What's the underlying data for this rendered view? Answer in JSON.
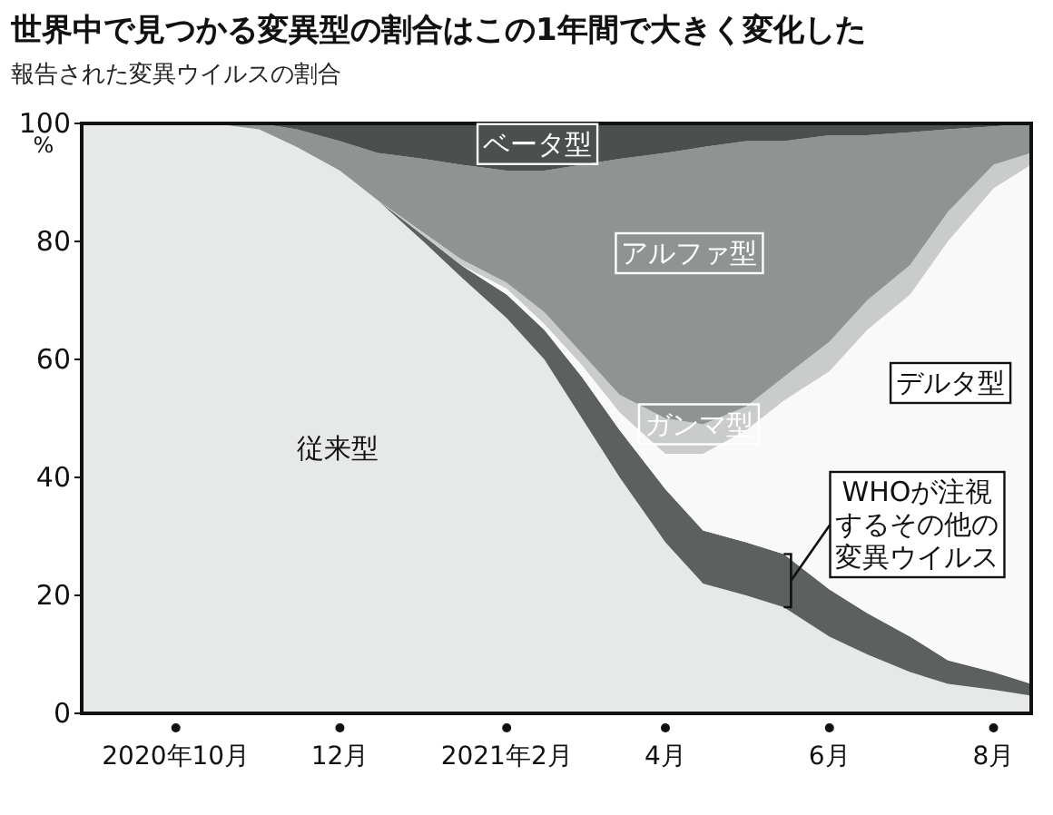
{
  "chart_data": {
    "type": "area",
    "stacked": true,
    "title": "世界中で見つかる変異型の割合はこの1年間で大きく変化した",
    "subtitle": "報告された変異ウイルスの割合",
    "ylabel": "%",
    "x": [
      "2020-08-27",
      "2020-09-15",
      "2020-10-01",
      "2020-10-15",
      "2020-11-01",
      "2020-11-15",
      "2020-12-01",
      "2020-12-15",
      "2021-01-01",
      "2021-01-15",
      "2021-02-01",
      "2021-02-15",
      "2021-03-01",
      "2021-03-15",
      "2021-04-01",
      "2021-04-15",
      "2021-05-01",
      "2021-05-15",
      "2021-06-01",
      "2021-06-15",
      "2021-07-01",
      "2021-07-15",
      "2021-08-01",
      "2021-08-15"
    ],
    "series": [
      {
        "name": "従来型",
        "color": "#e6e9e8",
        "values": [
          100,
          100,
          100,
          100,
          99,
          96,
          92,
          87,
          80,
          74,
          67,
          60,
          50,
          40,
          29,
          22,
          20,
          18,
          13,
          10,
          7,
          5,
          4,
          3
        ]
      },
      {
        "name": "WHOが注視するその他の変異ウイルス",
        "color": "#5c6160",
        "values": [
          0,
          0,
          0,
          0,
          0,
          0,
          0,
          0,
          1,
          2,
          4,
          5,
          7,
          8,
          9,
          9,
          9,
          9,
          8,
          7,
          6,
          4,
          3,
          2
        ]
      },
      {
        "name": "デルタ型",
        "color": "#f8f9f8",
        "values": [
          0,
          0,
          0,
          0,
          0,
          0,
          0,
          0,
          0,
          0,
          1,
          1,
          2,
          3,
          6,
          13,
          19,
          26,
          37,
          48,
          58,
          71,
          82,
          88
        ]
      },
      {
        "name": "ガンマ型",
        "color": "#c9cccb",
        "values": [
          0,
          0,
          0,
          0,
          0,
          0,
          0,
          0,
          0.5,
          1,
          1,
          2,
          2,
          3,
          6,
          5,
          4,
          4,
          5,
          5,
          5,
          5,
          4,
          2
        ]
      },
      {
        "name": "アルファ型",
        "color": "#8f9492",
        "values": [
          0,
          0,
          0,
          0,
          1,
          3,
          5,
          8,
          12.5,
          16,
          19,
          24,
          32,
          40,
          45,
          47,
          45,
          40,
          35,
          28,
          22.5,
          14,
          6.5,
          5
        ]
      },
      {
        "name": "ベータ型",
        "color": "#4b504e",
        "values": [
          0,
          0,
          0,
          0,
          0,
          1,
          3,
          5,
          6,
          7,
          8,
          8,
          7,
          6,
          5,
          4,
          3,
          3,
          2,
          2,
          1.5,
          1,
          0.5,
          0
        ]
      }
    ],
    "xlim": [
      "2020-08-27",
      "2021-08-15"
    ],
    "xticks": [
      {
        "value": "2020-10",
        "label": "2020年10月"
      },
      {
        "value": "2020-12",
        "label": "12月"
      },
      {
        "value": "2021-02",
        "label": "2021年2月"
      },
      {
        "value": "2021-04",
        "label": "4月"
      },
      {
        "value": "2021-06",
        "label": "6月"
      },
      {
        "value": "2021-08",
        "label": "8月"
      }
    ],
    "ylim": [
      0,
      100
    ],
    "yticks": [
      0,
      20,
      40,
      60,
      80,
      100
    ],
    "grid": false
  }
}
